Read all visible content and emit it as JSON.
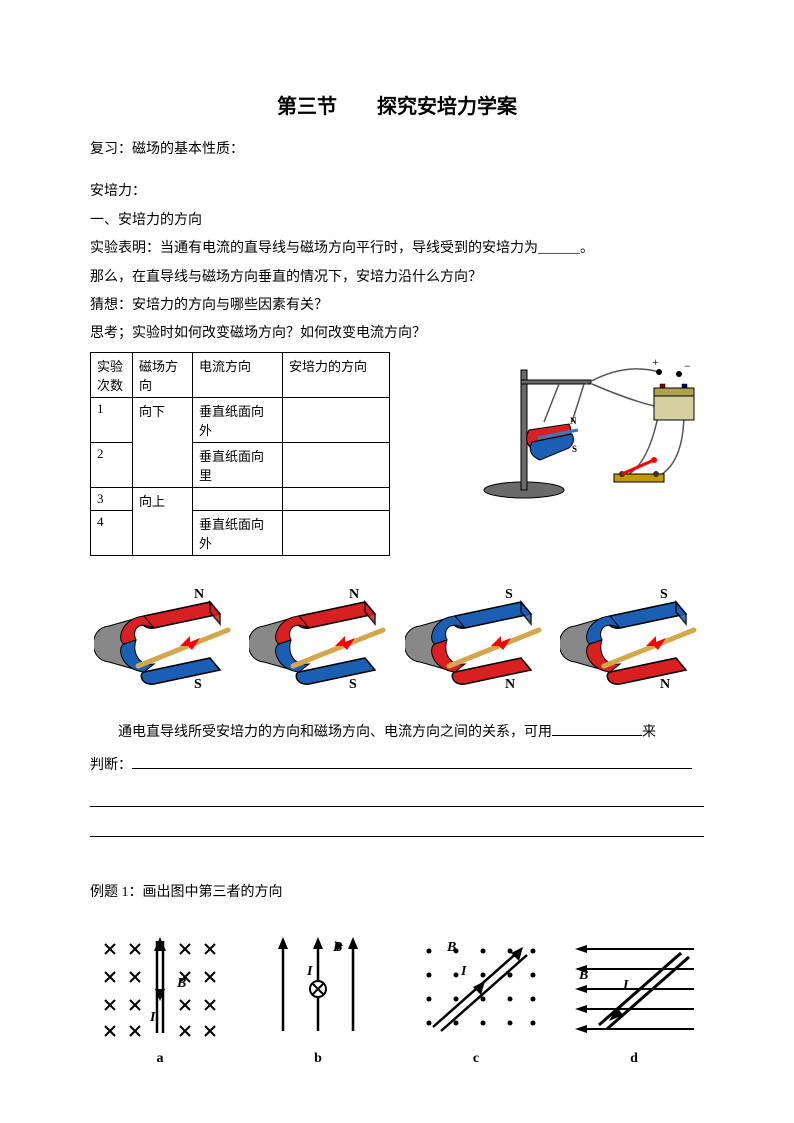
{
  "title": "第三节　　探究安培力学案",
  "review": "复习：磁场的基本性质：",
  "section_force": "安培力：",
  "sub1": "一、安培力的方向",
  "exp_statement": "实验表明：当通有电流的直导线与磁场方向平行时，导线受到的安培力为______。",
  "question1": "那么，在直导线与磁场方向垂直的情况下，安培力沿什么方向？",
  "guess": "猜想：安培力的方向与哪些因素有关？",
  "think": "思考；实验时如何改变磁场方向？如何改变电流方向？",
  "table": {
    "headers": [
      "实验次数",
      "磁场方向",
      "电流方向",
      "安培力的方向"
    ],
    "rows": [
      [
        "1",
        "向下",
        "垂直纸面向外",
        ""
      ],
      [
        "2",
        "",
        "垂直纸面向里",
        ""
      ],
      [
        "3",
        "向上",
        "",
        ""
      ],
      [
        "4",
        "",
        "垂直纸面向外",
        ""
      ]
    ]
  },
  "magnets": {
    "colors": {
      "red": "#d92020",
      "blue": "#1a5fb4",
      "outline": "#000000",
      "rod": "#d4a84a"
    },
    "poles": [
      {
        "top": "N",
        "bottom": "S",
        "topColor": "red",
        "bottomColor": "blue"
      },
      {
        "top": "N",
        "bottom": "S",
        "topColor": "red",
        "bottomColor": "blue"
      },
      {
        "top": "S",
        "bottom": "N",
        "topColor": "blue",
        "bottomColor": "red"
      },
      {
        "top": "S",
        "bottom": "N",
        "topColor": "blue",
        "bottomColor": "red"
      }
    ]
  },
  "fillin_text": "通电直导线所受安培力的方向和磁场方向、电流方向之间的关系，可用",
  "fillin_tail": "来",
  "fillin_head2": "判断：",
  "example1": "例题 1：画出图中第三者的方向",
  "diagram_labels": [
    "a",
    "b",
    "c",
    "d"
  ],
  "diagram_letters": {
    "B": "B",
    "I": "I"
  },
  "apparatus": {
    "colors": {
      "stand": "#6a6a6a",
      "battery_body": "#d6cfa0",
      "battery_top": "#b0a24a",
      "switch_base": "#c6990c",
      "switch_lever": "#ff0000",
      "wire": "#555555",
      "magnet_red": "#d92020",
      "magnet_blue": "#1a5fb4"
    },
    "labels": {
      "plus": "+",
      "minus": "−",
      "N": "N",
      "S": "S"
    }
  }
}
